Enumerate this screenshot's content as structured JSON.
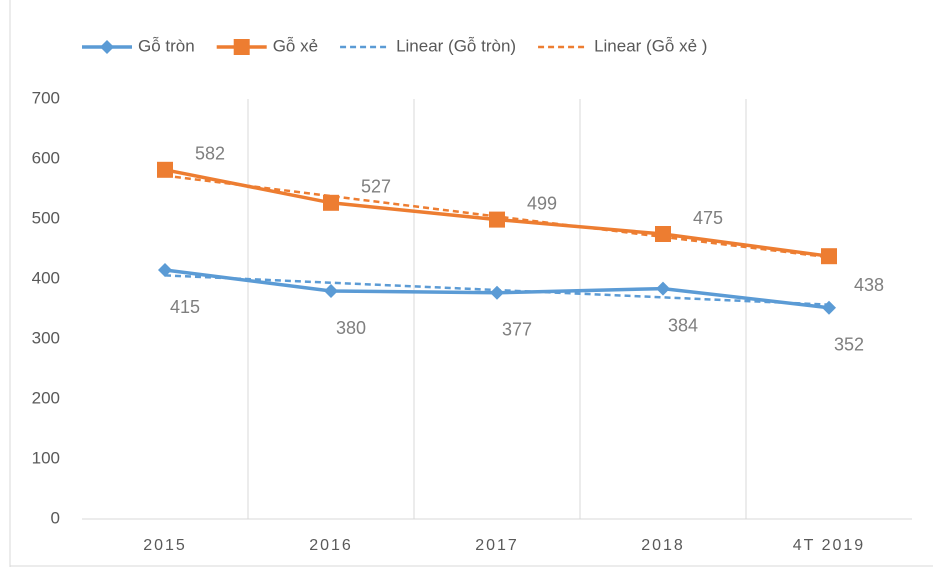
{
  "chart_data": {
    "type": "line",
    "categories": [
      "2015",
      "2016",
      "2017",
      "2018",
      "4T 2019"
    ],
    "series": [
      {
        "name": "Gỗ tròn",
        "color": "#5b9bd5",
        "marker": "diamond",
        "values": [
          415,
          380,
          377,
          384,
          352
        ],
        "trendline": {
          "name": "Linear (Gỗ tròn)",
          "type": "linear"
        }
      },
      {
        "name": "Gỗ xẻ",
        "color": "#ed7d31",
        "marker": "square",
        "values": [
          582,
          527,
          499,
          475,
          438
        ],
        "trendline": {
          "name": "Linear (Gỗ xẻ )",
          "type": "linear"
        }
      }
    ],
    "ylim": [
      0,
      700
    ],
    "yticks": [
      0,
      100,
      200,
      300,
      400,
      500,
      600,
      700
    ],
    "data_labels": true,
    "legend": "top"
  }
}
